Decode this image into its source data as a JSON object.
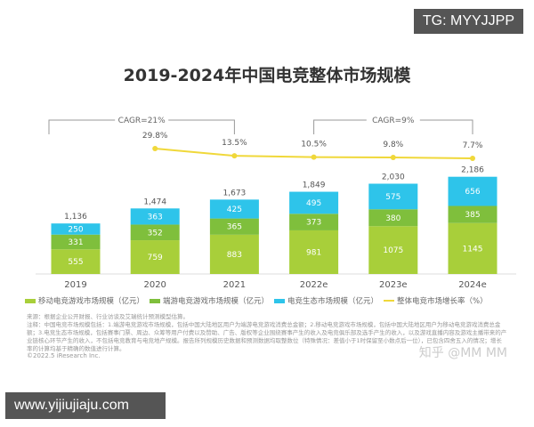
{
  "watermark_top": "TG: MYYJJPP",
  "watermark_bottom": "www.yijiujiaju.com",
  "watermark_zhihu": "知乎 @MM MM",
  "chart_data": {
    "type": "bar",
    "title": "2019-2024年中国电竞整体市场规模",
    "categories": [
      "2019",
      "2020",
      "2021",
      "2022e",
      "2023e",
      "2024e"
    ],
    "series": [
      {
        "name": "移动电竞游戏市场规模（亿元）",
        "values": [
          555,
          759,
          883,
          981,
          1075,
          1145
        ],
        "color": "#a8cf3a"
      },
      {
        "name": "端游电竞游戏市场规模（亿元）",
        "values": [
          331,
          352,
          365,
          373,
          380,
          385
        ],
        "color": "#7fbf3c"
      },
      {
        "name": "电竞生态市场规模（亿元）",
        "values": [
          250,
          363,
          425,
          495,
          575,
          656
        ],
        "color": "#2ec4ea"
      }
    ],
    "totals": [
      1136,
      1474,
      1673,
      1849,
      2030,
      2186
    ],
    "line_series": {
      "name": "整体电竞市场增长率（%）",
      "values": [
        null,
        29.8,
        13.5,
        10.5,
        9.8,
        7.7
      ],
      "labels": [
        "",
        "29.8%",
        "13.5%",
        "10.5%",
        "9.8%",
        "7.7%"
      ],
      "color": "#f0d83a"
    },
    "annotations": [
      {
        "text": "CAGR=21%",
        "from": "2019",
        "to": "2021"
      },
      {
        "text": "CAGR=9%",
        "from": "2022e",
        "to": "2024e"
      }
    ],
    "stacked": true,
    "legend_position": "bottom",
    "grid": false
  },
  "notes": {
    "source": "来源：根据企业公开财报、行业访谈及艾瑞统计预测模型估算。",
    "note": "注释：中国电竞市场规模包括：1.端游电竞游戏市场规模，包括中国大陆地区用户为端游电竞游戏消费总金额；2.移动电竞游戏市场规模，包括中国大陆地区用户为移动电竞游戏消费总金额；3.电竞生态市场规模，包括赛事门票、周边、众筹等用户付费以及赞助、广告、版权等企业围绕赛事产生的收入及电竞俱乐部及选手产生的收入，以及游戏直播内容及游戏主播带来的产业链核心环节产生的收入，不包括电竞教育与电竞地产规模。报告所列规模历史数据和预测数据均取整数位（特殊情况：差值小于1时保留至小数点后一位），已包含四舍五入的情况；增长率的计算均基于精确的数值进行计算。",
    "copyright": "©2022.5 iResearch Inc."
  }
}
